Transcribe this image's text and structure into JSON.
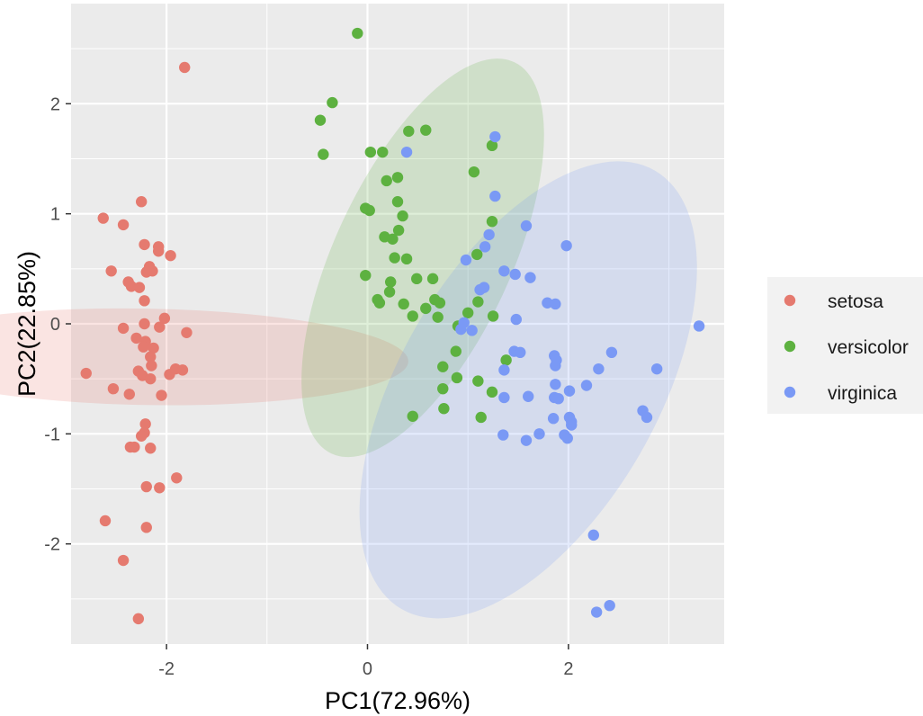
{
  "chart_data": {
    "type": "scatter",
    "xlabel": "PC1(72.96%)",
    "ylabel": "PC2(22.85%)",
    "xlim": [
      -2.95,
      3.55
    ],
    "ylim": [
      -2.91,
      2.91
    ],
    "x_ticks": [
      -2,
      0,
      2
    ],
    "y_ticks": [
      -2,
      -1,
      0,
      1,
      2
    ],
    "grid": true,
    "legend_position": "right",
    "colors": {
      "panel": "#EBEBEB",
      "grid": "#FFFFFF",
      "legend_bg": "#F2F2F2"
    },
    "series": [
      {
        "name": "setosa",
        "color": "#E57A6F",
        "ellipse": {
          "cx": -2.2,
          "cy": -0.3,
          "rx": 0.48,
          "ry": 2.38,
          "angle": -89
        },
        "points": [
          [
            -1.82,
            2.33
          ],
          [
            -2.25,
            1.11
          ],
          [
            -2.63,
            0.96
          ],
          [
            -2.43,
            0.9
          ],
          [
            -2.55,
            0.48
          ],
          [
            -2.22,
            0.72
          ],
          [
            -2.08,
            0.7
          ],
          [
            -2.08,
            0.66
          ],
          [
            -1.96,
            0.62
          ],
          [
            -2.17,
            0.52
          ],
          [
            -2.14,
            0.48
          ],
          [
            -2.2,
            0.47
          ],
          [
            -2.38,
            0.38
          ],
          [
            -2.35,
            0.34
          ],
          [
            -2.27,
            0.33
          ],
          [
            -2.22,
            0.21
          ],
          [
            -2.22,
            0.0
          ],
          [
            -2.43,
            -0.04
          ],
          [
            -2.07,
            -0.03
          ],
          [
            -1.8,
            -0.08
          ],
          [
            -2.3,
            -0.13
          ],
          [
            -2.21,
            -0.16
          ],
          [
            -2.23,
            -0.21
          ],
          [
            -2.13,
            -0.22
          ],
          [
            -2.16,
            -0.3
          ],
          [
            -2.8,
            -0.45
          ],
          [
            -2.28,
            -0.43
          ],
          [
            -2.24,
            -0.47
          ],
          [
            -2.16,
            -0.5
          ],
          [
            -1.97,
            -0.46
          ],
          [
            -1.91,
            -0.41
          ],
          [
            -1.84,
            -0.42
          ],
          [
            -2.05,
            -0.65
          ],
          [
            -2.53,
            -0.59
          ],
          [
            -2.37,
            -0.64
          ],
          [
            -2.21,
            -0.91
          ],
          [
            -2.22,
            -0.99
          ],
          [
            -2.16,
            -1.13
          ],
          [
            -2.36,
            -1.12
          ],
          [
            -2.32,
            -1.12
          ],
          [
            -1.9,
            -1.4
          ],
          [
            -2.2,
            -1.48
          ],
          [
            -2.07,
            -1.49
          ],
          [
            -2.61,
            -1.79
          ],
          [
            -2.2,
            -1.85
          ],
          [
            -2.43,
            -2.15
          ],
          [
            -2.28,
            -2.68
          ],
          [
            -2.25,
            -1.02
          ],
          [
            -2.15,
            -0.38
          ],
          [
            -2.02,
            0.05
          ]
        ]
      },
      {
        "name": "versicolor",
        "color": "#5DB140",
        "ellipse": {
          "cx": 0.55,
          "cy": 0.6,
          "rx": 2.15,
          "ry": 0.8,
          "angle": -65
        },
        "points": [
          [
            -0.1,
            2.64
          ],
          [
            -0.35,
            2.01
          ],
          [
            -0.47,
            1.85
          ],
          [
            -0.44,
            1.54
          ],
          [
            0.41,
            1.75
          ],
          [
            0.58,
            1.76
          ],
          [
            0.03,
            1.56
          ],
          [
            0.15,
            1.56
          ],
          [
            1.24,
            1.62
          ],
          [
            1.06,
            1.38
          ],
          [
            0.19,
            1.3
          ],
          [
            0.3,
            1.33
          ],
          [
            0.3,
            1.11
          ],
          [
            -0.02,
            1.05
          ],
          [
            0.02,
            1.03
          ],
          [
            0.35,
            0.98
          ],
          [
            1.24,
            0.93
          ],
          [
            0.31,
            0.85
          ],
          [
            0.17,
            0.79
          ],
          [
            0.25,
            0.77
          ],
          [
            1.09,
            0.63
          ],
          [
            0.27,
            0.6
          ],
          [
            0.39,
            0.59
          ],
          [
            -0.02,
            0.44
          ],
          [
            0.23,
            0.38
          ],
          [
            0.49,
            0.41
          ],
          [
            0.65,
            0.41
          ],
          [
            0.22,
            0.29
          ],
          [
            0.1,
            0.22
          ],
          [
            0.12,
            0.19
          ],
          [
            0.36,
            0.18
          ],
          [
            0.67,
            0.22
          ],
          [
            0.72,
            0.19
          ],
          [
            0.58,
            0.14
          ],
          [
            0.45,
            0.07
          ],
          [
            0.7,
            0.06
          ],
          [
            1.0,
            0.1
          ],
          [
            1.25,
            0.07
          ],
          [
            1.1,
            0.2
          ],
          [
            0.9,
            -0.02
          ],
          [
            0.88,
            -0.25
          ],
          [
            1.38,
            -0.33
          ],
          [
            0.75,
            -0.39
          ],
          [
            0.89,
            -0.49
          ],
          [
            1.1,
            -0.52
          ],
          [
            0.75,
            -0.59
          ],
          [
            1.24,
            -0.62
          ],
          [
            0.45,
            -0.84
          ],
          [
            0.76,
            -0.77
          ],
          [
            1.13,
            -0.85
          ]
        ]
      },
      {
        "name": "virginica",
        "color": "#7A99F5",
        "ellipse": {
          "cx": 1.6,
          "cy": -0.6,
          "rx": 2.52,
          "ry": 1.17,
          "angle": -60
        },
        "points": [
          [
            1.27,
            1.7
          ],
          [
            0.39,
            1.56
          ],
          [
            1.27,
            1.16
          ],
          [
            1.58,
            0.89
          ],
          [
            1.98,
            0.71
          ],
          [
            1.21,
            0.81
          ],
          [
            1.17,
            0.7
          ],
          [
            0.98,
            0.58
          ],
          [
            1.36,
            0.48
          ],
          [
            1.47,
            0.45
          ],
          [
            1.62,
            0.42
          ],
          [
            1.16,
            0.33
          ],
          [
            1.12,
            0.31
          ],
          [
            1.79,
            0.19
          ],
          [
            1.87,
            0.18
          ],
          [
            1.48,
            0.04
          ],
          [
            0.96,
            0.01
          ],
          [
            0.93,
            -0.05
          ],
          [
            1.04,
            -0.06
          ],
          [
            3.3,
            -0.02
          ],
          [
            1.46,
            -0.25
          ],
          [
            1.52,
            -0.26
          ],
          [
            2.43,
            -0.26
          ],
          [
            1.86,
            -0.29
          ],
          [
            1.87,
            -0.38
          ],
          [
            1.36,
            -0.42
          ],
          [
            2.3,
            -0.41
          ],
          [
            2.88,
            -0.41
          ],
          [
            1.87,
            -0.55
          ],
          [
            2.18,
            -0.56
          ],
          [
            2.01,
            -0.61
          ],
          [
            1.36,
            -0.67
          ],
          [
            1.6,
            -0.66
          ],
          [
            1.86,
            -0.67
          ],
          [
            1.9,
            -0.68
          ],
          [
            2.01,
            -0.85
          ],
          [
            2.03,
            -0.89
          ],
          [
            2.03,
            -0.92
          ],
          [
            2.74,
            -0.79
          ],
          [
            2.78,
            -0.85
          ],
          [
            1.85,
            -0.86
          ],
          [
            1.96,
            -1.01
          ],
          [
            1.99,
            -1.04
          ],
          [
            1.71,
            -1.0
          ],
          [
            1.35,
            -1.01
          ],
          [
            1.58,
            -1.06
          ],
          [
            2.25,
            -1.92
          ],
          [
            2.28,
            -2.62
          ],
          [
            2.41,
            -2.56
          ],
          [
            1.88,
            -0.33
          ]
        ]
      }
    ]
  }
}
